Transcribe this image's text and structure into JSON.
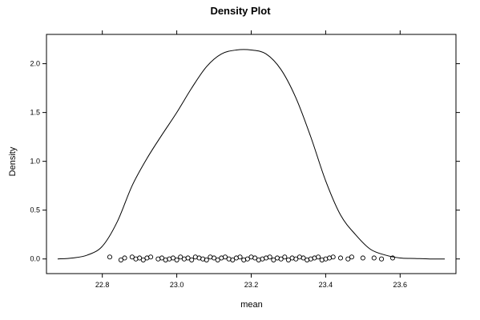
{
  "chart_data": {
    "type": "line",
    "title": "Density Plot",
    "xlabel": "mean",
    "ylabel": "Density",
    "xlim": [
      22.65,
      23.75
    ],
    "ylim": [
      -0.15,
      2.3
    ],
    "x_ticks": [
      22.8,
      23.0,
      23.2,
      23.4,
      23.6
    ],
    "x_tick_labels": [
      "22.8",
      "23.0",
      "23.2",
      "23.4",
      "23.6"
    ],
    "y_ticks": [
      0.0,
      0.5,
      1.0,
      1.5,
      2.0
    ],
    "y_tick_labels": [
      "0.0",
      "0.5",
      "1.0",
      "1.5",
      "2.0"
    ],
    "grid": false,
    "series": [
      {
        "kind": "density-curve",
        "x": [
          22.68,
          22.72,
          22.76,
          22.8,
          22.84,
          22.88,
          22.92,
          22.96,
          23.0,
          23.04,
          23.08,
          23.12,
          23.16,
          23.2,
          23.24,
          23.28,
          23.32,
          23.36,
          23.4,
          23.44,
          23.48,
          23.52,
          23.56,
          23.6,
          23.64,
          23.68,
          23.72
        ],
        "y": [
          0.0,
          0.01,
          0.04,
          0.13,
          0.38,
          0.75,
          1.03,
          1.27,
          1.5,
          1.75,
          1.97,
          2.1,
          2.14,
          2.14,
          2.1,
          1.94,
          1.65,
          1.25,
          0.8,
          0.45,
          0.25,
          0.1,
          0.04,
          0.01,
          0.005,
          0.0,
          0.0
        ]
      },
      {
        "kind": "rug-points",
        "x": [
          22.82,
          22.85,
          22.86,
          22.88,
          22.89,
          22.9,
          22.91,
          22.92,
          22.93,
          22.95,
          22.96,
          22.97,
          22.98,
          22.99,
          23.0,
          23.01,
          23.02,
          23.03,
          23.04,
          23.05,
          23.06,
          23.07,
          23.08,
          23.09,
          23.1,
          23.11,
          23.12,
          23.13,
          23.14,
          23.15,
          23.16,
          23.17,
          23.18,
          23.19,
          23.2,
          23.21,
          23.22,
          23.23,
          23.24,
          23.25,
          23.26,
          23.27,
          23.28,
          23.29,
          23.3,
          23.31,
          23.32,
          23.33,
          23.34,
          23.35,
          23.36,
          23.37,
          23.38,
          23.39,
          23.4,
          23.41,
          23.42,
          23.44,
          23.46,
          23.47,
          23.5,
          23.53,
          23.55,
          23.58
        ],
        "y": [
          0.02,
          -0.01,
          0.01,
          0.02,
          0.0,
          0.01,
          -0.01,
          0.01,
          0.02,
          0.0,
          0.01,
          -0.01,
          0.0,
          0.01,
          -0.01,
          0.02,
          0.0,
          0.01,
          -0.01,
          0.02,
          0.01,
          0.0,
          -0.01,
          0.02,
          0.01,
          -0.01,
          0.01,
          0.02,
          0.0,
          -0.01,
          0.01,
          0.02,
          -0.01,
          0.0,
          0.02,
          0.01,
          -0.01,
          0.0,
          0.01,
          0.02,
          -0.01,
          0.01,
          0.0,
          0.02,
          -0.01,
          0.01,
          0.0,
          0.02,
          0.01,
          -0.01,
          0.0,
          0.01,
          0.02,
          -0.01,
          0.0,
          0.01,
          0.02,
          0.01,
          0.0,
          0.02,
          0.01,
          0.01,
          0.0,
          0.01
        ]
      }
    ]
  }
}
